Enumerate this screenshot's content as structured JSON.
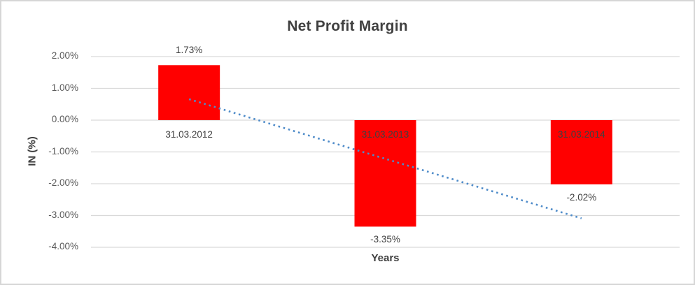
{
  "chart_data": {
    "type": "bar",
    "title": "Net Profit Margin",
    "xlabel": "Years",
    "ylabel": "IN (%)",
    "categories": [
      "31.03.2012",
      "31.03.2013",
      "31.03.2014"
    ],
    "series": [
      {
        "name": "Net Profit Margin",
        "values": [
          1.73,
          -3.35,
          -2.02
        ]
      }
    ],
    "data_labels": [
      "1.73%",
      "-3.35%",
      "-2.02%"
    ],
    "ylim": [
      -4,
      2
    ],
    "yticks": [
      {
        "value": 2,
        "label": "2.00%"
      },
      {
        "value": 1,
        "label": "1.00%"
      },
      {
        "value": 0,
        "label": "0.00%"
      },
      {
        "value": -1,
        "label": "-1.00%"
      },
      {
        "value": -2,
        "label": "-2.00%"
      },
      {
        "value": -3,
        "label": "-3.00%"
      },
      {
        "value": -4,
        "label": "-4.00%"
      }
    ],
    "grid": true,
    "legend": "none",
    "trendline": {
      "type": "linear",
      "style": "dotted",
      "start_value": 0.66,
      "end_value": -3.09
    },
    "colors": {
      "bar": "#FF0000",
      "trendline": "#4E8BC9",
      "gridline": "#D9D9D9",
      "title_text": "#404040",
      "tick_text": "#595959",
      "label_text": "#404040"
    }
  }
}
